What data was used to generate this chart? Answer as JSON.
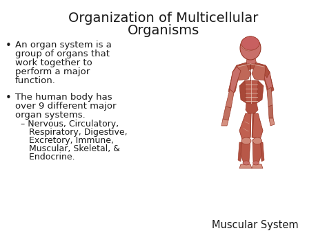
{
  "title_line1": "Organization of Multicellular",
  "title_line2": "Organisms",
  "title_fontsize": 14,
  "title_color": "#1a1a1a",
  "background_color": "#ffffff",
  "bullet1_line1": "An organ system is a",
  "bullet1_line2": "group of organs that",
  "bullet1_line3": "work together to",
  "bullet1_line4": "perform a major",
  "bullet1_line5": "function.",
  "bullet2_line1": "The human body has",
  "bullet2_line2": "over 9 different major",
  "bullet2_line3": "organ systems.",
  "sub1": "– Nervous, Circulatory,",
  "sub2": "   Respiratory, Digestive,",
  "sub3": "   Excretory, Immune,",
  "sub4": "   Muscular, Skeletal, &",
  "sub5": "   Endocrine.",
  "caption": "Muscular System",
  "text_color": "#1a1a1a",
  "bullet_fontsize": 9.5,
  "caption_fontsize": 10.5,
  "skin_color": "#c8706a",
  "skin_dark": "#9a3a2a",
  "skin_mid": "#b05040",
  "skin_light": "#d49080",
  "muscle_dark": "#5a1a10",
  "white_line": "#e8d0c0"
}
